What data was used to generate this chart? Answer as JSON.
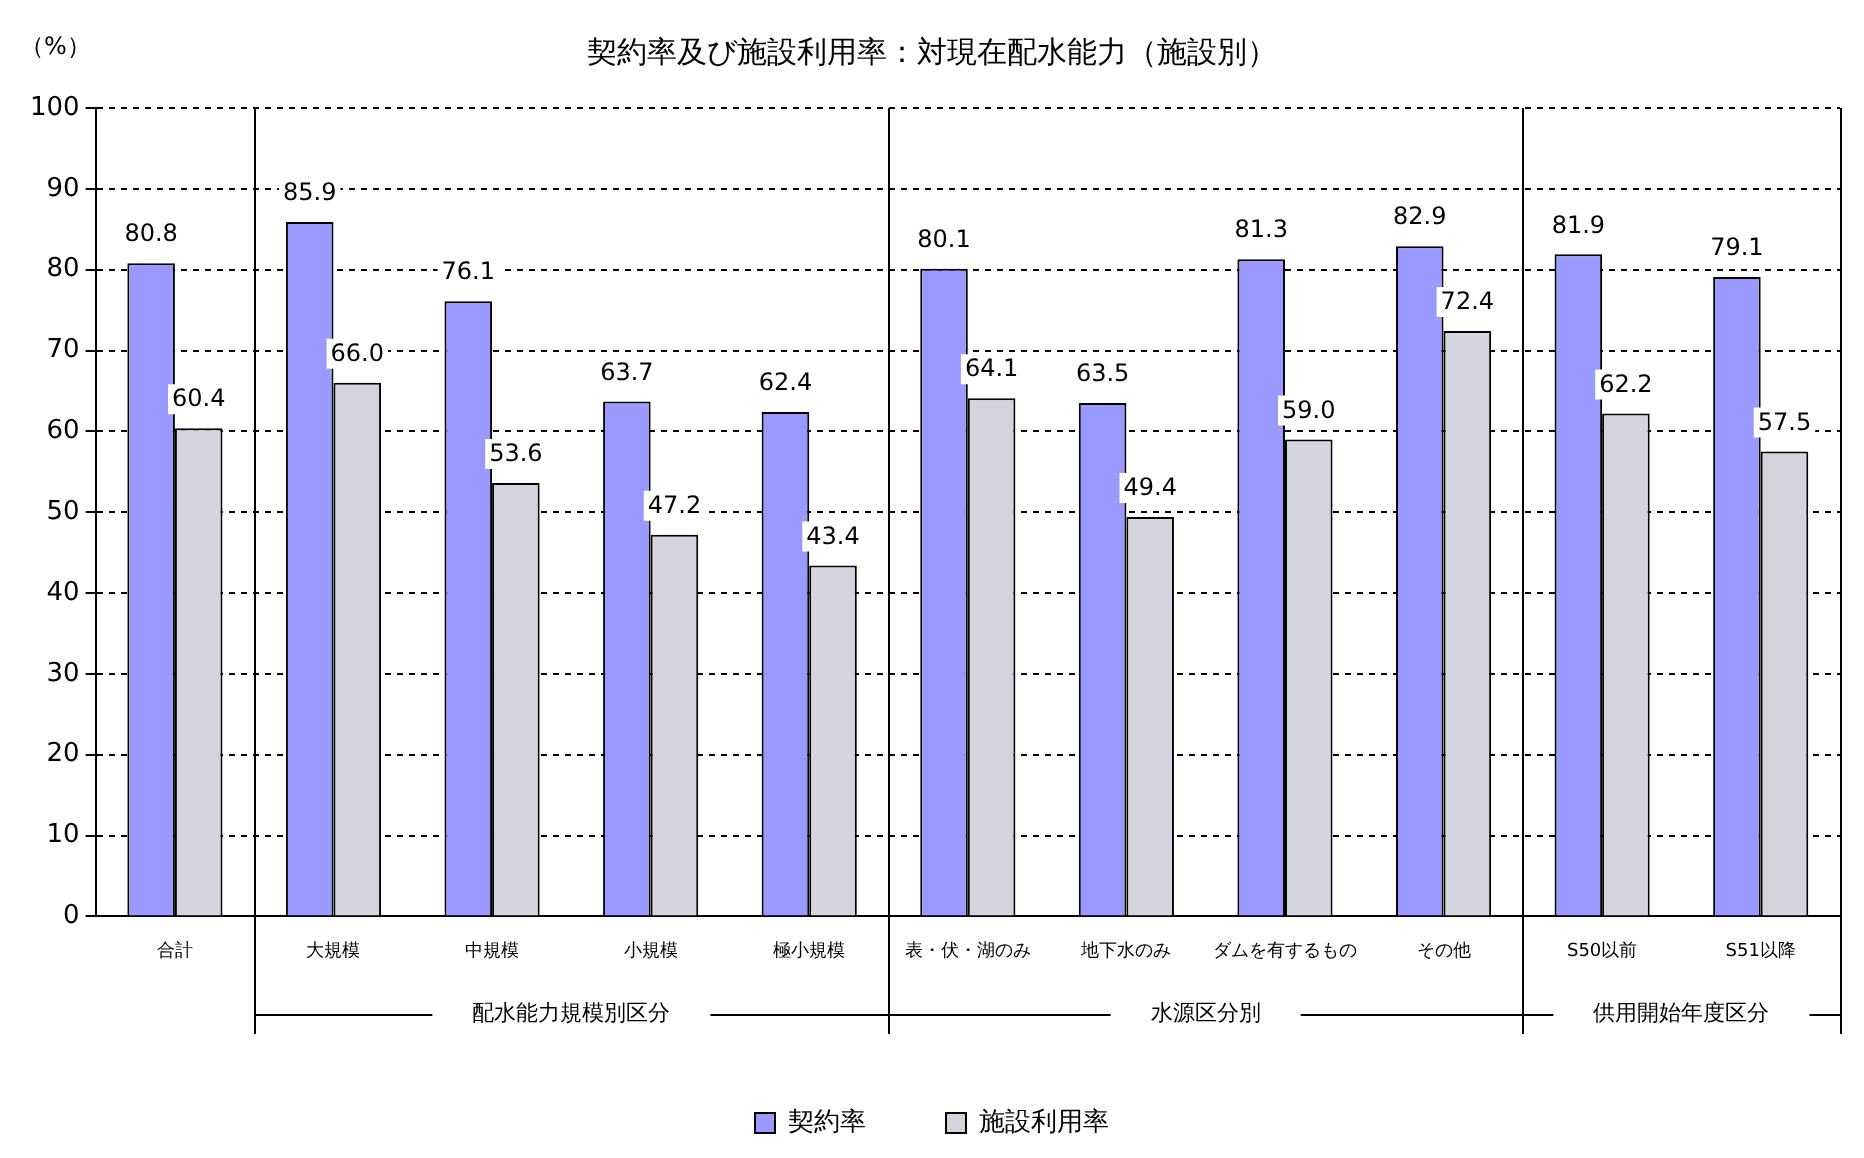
{
  "chart_data": {
    "type": "bar",
    "title": "契約率及び施設利用率：対現在配水能力（施設別）",
    "ylabel": "（%）",
    "categories": [
      "合計",
      "大規模",
      "中規模",
      "小規模",
      "極小規模",
      "表・伏・湖のみ",
      "地下水のみ",
      "ダムを有するもの",
      "その他",
      "S50以前",
      "S51以降"
    ],
    "series": [
      {
        "name": "契約率",
        "color": "#9999ff",
        "values": [
          80.8,
          85.9,
          76.1,
          63.7,
          62.4,
          80.1,
          63.5,
          81.3,
          82.9,
          81.9,
          79.1
        ],
        "value_labels": [
          "80.8",
          "85.9",
          "76.1",
          "63.7",
          "62.4",
          "80.1",
          "63.5",
          "81.3",
          "82.9",
          "81.9",
          "79.1"
        ]
      },
      {
        "name": "施設利用率",
        "color": "#d4d4dc",
        "values": [
          60.4,
          66.0,
          53.6,
          47.2,
          43.4,
          64.1,
          49.4,
          59.0,
          72.4,
          62.2,
          57.5
        ],
        "value_labels": [
          "60.4",
          "66.0",
          "53.6",
          "47.2",
          "43.4",
          "64.1",
          "49.4",
          "59.0",
          "72.4",
          "62.2",
          "57.5"
        ]
      }
    ],
    "annotations": [
      "配水能力規模別区分",
      "水源区分別",
      "供用開始年度区分"
    ],
    "ylim": [
      0,
      100
    ],
    "yticks": [
      0,
      10,
      20,
      30,
      40,
      50,
      60,
      70,
      80,
      90,
      100
    ],
    "grid": "y",
    "legend": "bottom"
  }
}
